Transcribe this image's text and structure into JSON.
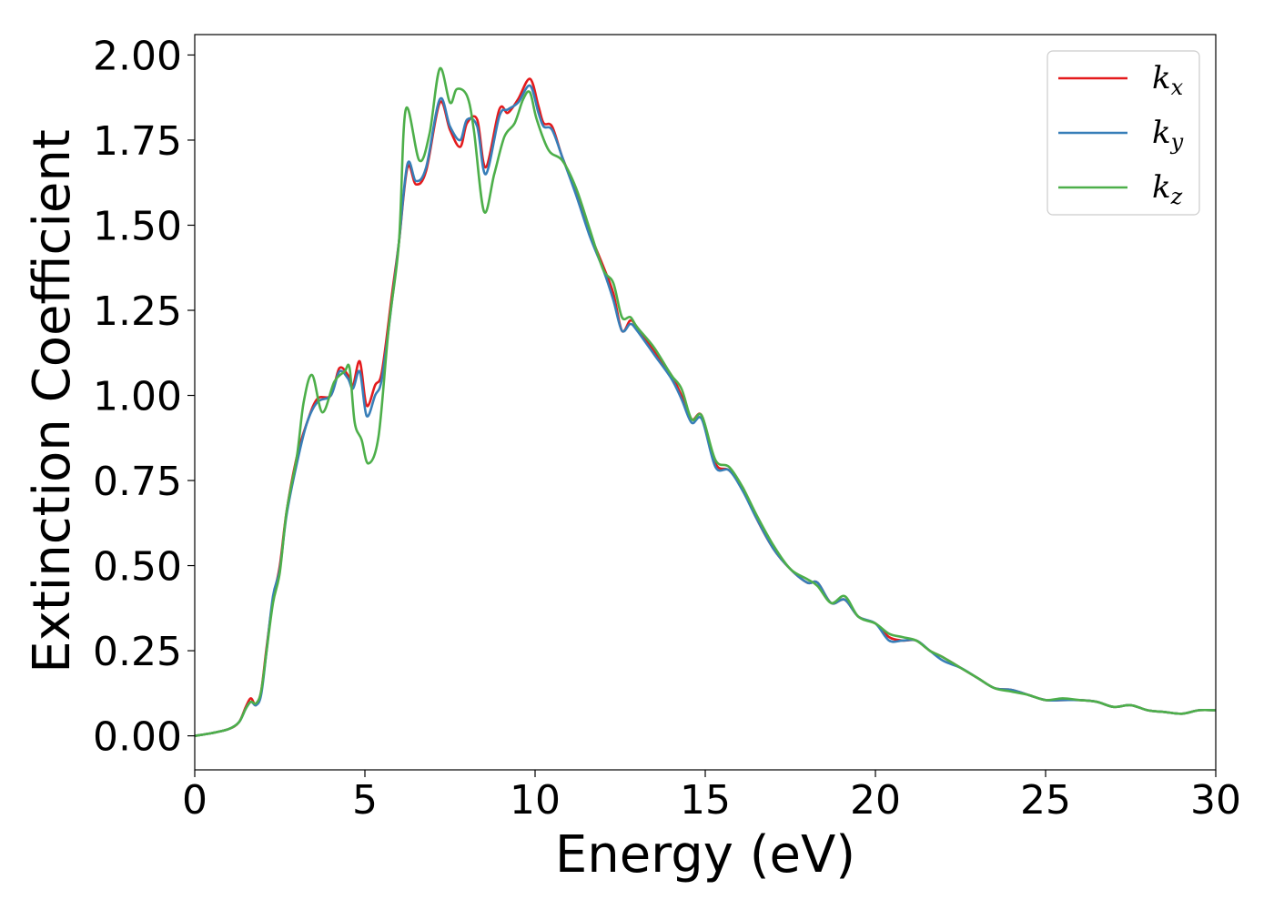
{
  "chart_data": {
    "type": "line",
    "xlabel": "Energy (eV)",
    "ylabel": "Extinction Coefficient",
    "xlim": [
      0,
      30
    ],
    "ylim": [
      -0.1,
      2.06
    ],
    "xticks": [
      0,
      5,
      10,
      15,
      20,
      25,
      30
    ],
    "xtick_labels": [
      "0",
      "5",
      "10",
      "15",
      "20",
      "25",
      "30"
    ],
    "yticks": [
      0.0,
      0.25,
      0.5,
      0.75,
      1.0,
      1.25,
      1.5,
      1.75,
      2.0
    ],
    "ytick_labels": [
      "0.00",
      "0.25",
      "0.50",
      "0.75",
      "1.00",
      "1.25",
      "1.50",
      "1.75",
      "2.00"
    ],
    "grid": false,
    "legend_position": "top-right",
    "series": [
      {
        "name": "k",
        "subscript": "x",
        "color": "#e41a1c",
        "points": [
          [
            0,
            0
          ],
          [
            0.5,
            0.008
          ],
          [
            1.0,
            0.02
          ],
          [
            1.3,
            0.04
          ],
          [
            1.5,
            0.085
          ],
          [
            1.65,
            0.11
          ],
          [
            1.8,
            0.09
          ],
          [
            1.95,
            0.13
          ],
          [
            2.1,
            0.25
          ],
          [
            2.3,
            0.4
          ],
          [
            2.5,
            0.5
          ],
          [
            2.7,
            0.66
          ],
          [
            3.0,
            0.82
          ],
          [
            3.3,
            0.92
          ],
          [
            3.6,
            0.99
          ],
          [
            4.0,
            1.0
          ],
          [
            4.25,
            1.08
          ],
          [
            4.5,
            1.06
          ],
          [
            4.65,
            1.03
          ],
          [
            4.85,
            1.1
          ],
          [
            5.05,
            0.97
          ],
          [
            5.3,
            1.03
          ],
          [
            5.5,
            1.07
          ],
          [
            5.8,
            1.3
          ],
          [
            6.0,
            1.45
          ],
          [
            6.25,
            1.67
          ],
          [
            6.5,
            1.62
          ],
          [
            6.8,
            1.66
          ],
          [
            7.2,
            1.86
          ],
          [
            7.5,
            1.78
          ],
          [
            7.8,
            1.73
          ],
          [
            8.0,
            1.8
          ],
          [
            8.3,
            1.81
          ],
          [
            8.55,
            1.67
          ],
          [
            8.95,
            1.84
          ],
          [
            9.2,
            1.83
          ],
          [
            9.5,
            1.87
          ],
          [
            9.85,
            1.93
          ],
          [
            10.1,
            1.85
          ],
          [
            10.25,
            1.8
          ],
          [
            10.5,
            1.79
          ],
          [
            10.8,
            1.7
          ],
          [
            11.2,
            1.6
          ],
          [
            11.6,
            1.48
          ],
          [
            12.0,
            1.38
          ],
          [
            12.3,
            1.3
          ],
          [
            12.55,
            1.19
          ],
          [
            12.8,
            1.22
          ],
          [
            13.0,
            1.2
          ],
          [
            13.5,
            1.13
          ],
          [
            14.0,
            1.06
          ],
          [
            14.3,
            1.0
          ],
          [
            14.6,
            0.93
          ],
          [
            14.9,
            0.94
          ],
          [
            15.3,
            0.8
          ],
          [
            15.7,
            0.78
          ],
          [
            16.1,
            0.73
          ],
          [
            16.5,
            0.64
          ],
          [
            17.0,
            0.55
          ],
          [
            17.5,
            0.49
          ],
          [
            18.0,
            0.45
          ],
          [
            18.3,
            0.45
          ],
          [
            18.7,
            0.39
          ],
          [
            19.1,
            0.4
          ],
          [
            19.5,
            0.35
          ],
          [
            20.0,
            0.33
          ],
          [
            20.4,
            0.29
          ],
          [
            20.8,
            0.28
          ],
          [
            21.2,
            0.28
          ],
          [
            21.6,
            0.25
          ],
          [
            22.0,
            0.23
          ],
          [
            22.5,
            0.2
          ],
          [
            23.0,
            0.17
          ],
          [
            23.5,
            0.14
          ],
          [
            24.0,
            0.135
          ],
          [
            24.5,
            0.12
          ],
          [
            25.0,
            0.105
          ],
          [
            25.5,
            0.105
          ],
          [
            26.0,
            0.105
          ],
          [
            26.5,
            0.1
          ],
          [
            27.0,
            0.085
          ],
          [
            27.5,
            0.09
          ],
          [
            28.0,
            0.075
          ],
          [
            28.5,
            0.07
          ],
          [
            29.0,
            0.065
          ],
          [
            29.5,
            0.075
          ],
          [
            30.0,
            0.075
          ]
        ]
      },
      {
        "name": "k",
        "subscript": "y",
        "color": "#377eb8",
        "points": [
          [
            0,
            0
          ],
          [
            0.5,
            0.008
          ],
          [
            1.0,
            0.02
          ],
          [
            1.3,
            0.04
          ],
          [
            1.5,
            0.08
          ],
          [
            1.65,
            0.1
          ],
          [
            1.8,
            0.09
          ],
          [
            1.95,
            0.12
          ],
          [
            2.1,
            0.24
          ],
          [
            2.3,
            0.41
          ],
          [
            2.5,
            0.49
          ],
          [
            2.7,
            0.65
          ],
          [
            3.0,
            0.8
          ],
          [
            3.3,
            0.92
          ],
          [
            3.6,
            0.98
          ],
          [
            4.0,
            1.0
          ],
          [
            4.25,
            1.07
          ],
          [
            4.5,
            1.05
          ],
          [
            4.65,
            1.02
          ],
          [
            4.85,
            1.07
          ],
          [
            5.05,
            0.94
          ],
          [
            5.3,
            1.0
          ],
          [
            5.5,
            1.05
          ],
          [
            5.8,
            1.28
          ],
          [
            6.0,
            1.45
          ],
          [
            6.25,
            1.68
          ],
          [
            6.5,
            1.63
          ],
          [
            6.8,
            1.67
          ],
          [
            7.2,
            1.87
          ],
          [
            7.5,
            1.79
          ],
          [
            7.8,
            1.75
          ],
          [
            8.0,
            1.81
          ],
          [
            8.3,
            1.79
          ],
          [
            8.55,
            1.65
          ],
          [
            8.95,
            1.82
          ],
          [
            9.2,
            1.84
          ],
          [
            9.5,
            1.86
          ],
          [
            9.85,
            1.91
          ],
          [
            10.1,
            1.83
          ],
          [
            10.25,
            1.79
          ],
          [
            10.5,
            1.78
          ],
          [
            10.8,
            1.7
          ],
          [
            11.2,
            1.59
          ],
          [
            11.6,
            1.47
          ],
          [
            12.0,
            1.37
          ],
          [
            12.3,
            1.28
          ],
          [
            12.55,
            1.19
          ],
          [
            12.8,
            1.21
          ],
          [
            13.0,
            1.19
          ],
          [
            13.5,
            1.12
          ],
          [
            14.0,
            1.05
          ],
          [
            14.3,
            0.99
          ],
          [
            14.6,
            0.92
          ],
          [
            14.9,
            0.93
          ],
          [
            15.3,
            0.79
          ],
          [
            15.7,
            0.78
          ],
          [
            16.1,
            0.72
          ],
          [
            16.5,
            0.64
          ],
          [
            17.0,
            0.55
          ],
          [
            17.5,
            0.49
          ],
          [
            18.0,
            0.45
          ],
          [
            18.3,
            0.45
          ],
          [
            18.7,
            0.39
          ],
          [
            19.1,
            0.4
          ],
          [
            19.5,
            0.35
          ],
          [
            20.0,
            0.33
          ],
          [
            20.4,
            0.28
          ],
          [
            20.8,
            0.28
          ],
          [
            21.2,
            0.28
          ],
          [
            21.6,
            0.25
          ],
          [
            22.0,
            0.22
          ],
          [
            22.5,
            0.2
          ],
          [
            23.0,
            0.17
          ],
          [
            23.5,
            0.14
          ],
          [
            24.0,
            0.135
          ],
          [
            24.5,
            0.12
          ],
          [
            25.0,
            0.105
          ],
          [
            25.5,
            0.105
          ],
          [
            26.0,
            0.105
          ],
          [
            26.5,
            0.1
          ],
          [
            27.0,
            0.085
          ],
          [
            27.5,
            0.09
          ],
          [
            28.0,
            0.075
          ],
          [
            28.5,
            0.07
          ],
          [
            29.0,
            0.065
          ],
          [
            29.5,
            0.075
          ],
          [
            30.0,
            0.075
          ]
        ]
      },
      {
        "name": "k",
        "subscript": "z",
        "color": "#4daf4a",
        "points": [
          [
            0,
            0
          ],
          [
            0.5,
            0.008
          ],
          [
            1.0,
            0.02
          ],
          [
            1.3,
            0.04
          ],
          [
            1.5,
            0.08
          ],
          [
            1.65,
            0.1
          ],
          [
            1.8,
            0.095
          ],
          [
            1.95,
            0.13
          ],
          [
            2.1,
            0.24
          ],
          [
            2.3,
            0.39
          ],
          [
            2.5,
            0.48
          ],
          [
            2.7,
            0.66
          ],
          [
            3.0,
            0.82
          ],
          [
            3.2,
            0.98
          ],
          [
            3.45,
            1.06
          ],
          [
            3.75,
            0.95
          ],
          [
            4.1,
            1.04
          ],
          [
            4.4,
            1.07
          ],
          [
            4.55,
            1.08
          ],
          [
            4.7,
            0.92
          ],
          [
            4.9,
            0.87
          ],
          [
            5.1,
            0.8
          ],
          [
            5.4,
            0.88
          ],
          [
            5.7,
            1.2
          ],
          [
            6.0,
            1.45
          ],
          [
            6.2,
            1.84
          ],
          [
            6.6,
            1.69
          ],
          [
            6.9,
            1.77
          ],
          [
            7.2,
            1.96
          ],
          [
            7.5,
            1.86
          ],
          [
            7.7,
            1.9
          ],
          [
            8.0,
            1.88
          ],
          [
            8.2,
            1.78
          ],
          [
            8.5,
            1.54
          ],
          [
            8.8,
            1.65
          ],
          [
            9.1,
            1.76
          ],
          [
            9.4,
            1.8
          ],
          [
            9.65,
            1.87
          ],
          [
            9.85,
            1.89
          ],
          [
            10.05,
            1.81
          ],
          [
            10.4,
            1.72
          ],
          [
            10.8,
            1.69
          ],
          [
            11.2,
            1.61
          ],
          [
            11.6,
            1.49
          ],
          [
            12.0,
            1.37
          ],
          [
            12.3,
            1.33
          ],
          [
            12.55,
            1.23
          ],
          [
            12.8,
            1.23
          ],
          [
            13.0,
            1.2
          ],
          [
            13.5,
            1.14
          ],
          [
            14.0,
            1.06
          ],
          [
            14.3,
            1.02
          ],
          [
            14.6,
            0.93
          ],
          [
            14.9,
            0.94
          ],
          [
            15.3,
            0.81
          ],
          [
            15.7,
            0.79
          ],
          [
            16.1,
            0.73
          ],
          [
            16.5,
            0.65
          ],
          [
            17.0,
            0.56
          ],
          [
            17.5,
            0.49
          ],
          [
            18.0,
            0.46
          ],
          [
            18.3,
            0.44
          ],
          [
            18.7,
            0.39
          ],
          [
            19.1,
            0.41
          ],
          [
            19.5,
            0.35
          ],
          [
            20.0,
            0.33
          ],
          [
            20.4,
            0.3
          ],
          [
            20.8,
            0.29
          ],
          [
            21.2,
            0.28
          ],
          [
            21.6,
            0.25
          ],
          [
            22.0,
            0.23
          ],
          [
            22.5,
            0.2
          ],
          [
            23.0,
            0.17
          ],
          [
            23.5,
            0.14
          ],
          [
            24.0,
            0.13
          ],
          [
            24.5,
            0.12
          ],
          [
            25.0,
            0.105
          ],
          [
            25.5,
            0.11
          ],
          [
            26.0,
            0.105
          ],
          [
            26.5,
            0.1
          ],
          [
            27.0,
            0.085
          ],
          [
            27.5,
            0.09
          ],
          [
            28.0,
            0.075
          ],
          [
            28.5,
            0.07
          ],
          [
            29.0,
            0.065
          ],
          [
            29.5,
            0.075
          ],
          [
            30.0,
            0.075
          ]
        ]
      }
    ]
  }
}
